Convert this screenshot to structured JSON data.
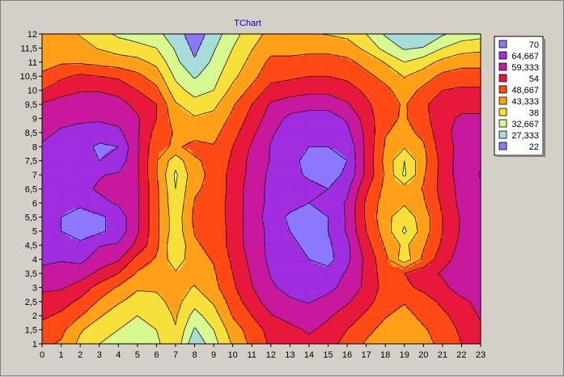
{
  "chart_data": {
    "type": "heatmap",
    "subtype": "contour",
    "title": "TChart",
    "xlabel": "",
    "ylabel": "",
    "xlim": [
      0,
      23
    ],
    "ylim": [
      1,
      12
    ],
    "x_ticks": [
      "0",
      "1",
      "2",
      "3",
      "4",
      "5",
      "6",
      "7",
      "8",
      "9",
      "10",
      "11",
      "12",
      "13",
      "14",
      "15",
      "16",
      "17",
      "18",
      "19",
      "20",
      "21",
      "22",
      "23"
    ],
    "y_ticks": [
      "1",
      "1,5",
      "2",
      "2,5",
      "3",
      "3,5",
      "4",
      "4,5",
      "5",
      "5,5",
      "6",
      "6,5",
      "7",
      "7,5",
      "8",
      "8,5",
      "9",
      "9,5",
      "10",
      "10,5",
      "11",
      "11,5",
      "12"
    ],
    "legend_position": "right",
    "levels": [
      {
        "label": "70",
        "color": "#8c78ff"
      },
      {
        "label": "64,667",
        "color": "#a02de0"
      },
      {
        "label": "59,333",
        "color": "#c8189e"
      },
      {
        "label": "54",
        "color": "#e8183c"
      },
      {
        "label": "48,667",
        "color": "#ff4a16"
      },
      {
        "label": "43,333",
        "color": "#ffa018"
      },
      {
        "label": "38",
        "color": "#f8e03a"
      },
      {
        "label": "32,667",
        "color": "#d8f890"
      },
      {
        "label": "27,333",
        "color": "#a8dcd8"
      },
      {
        "label": "22",
        "color": "#8c78ff"
      }
    ],
    "x": [
      0,
      1,
      2,
      3,
      4,
      5,
      6,
      7,
      8,
      9,
      10,
      11,
      12,
      13,
      14,
      15,
      16,
      17,
      18,
      19,
      20,
      21,
      22,
      23
    ],
    "y": [
      1,
      1.5,
      2,
      2.5,
      3,
      3.5,
      4,
      4.5,
      5,
      5.5,
      6,
      6.5,
      7,
      7.5,
      8,
      8.5,
      9,
      9.5,
      10,
      10.5,
      11,
      11.5,
      12
    ],
    "z": [
      [
        50,
        48,
        42,
        38,
        36,
        35,
        37,
        42,
        28,
        36,
        44,
        50,
        55,
        56,
        58,
        56,
        52,
        48,
        46,
        44,
        47,
        50,
        54,
        57
      ],
      [
        52,
        50,
        44,
        40,
        38,
        36,
        38,
        43,
        32,
        38,
        46,
        51,
        56,
        58,
        60,
        58,
        54,
        50,
        47,
        45,
        48,
        51,
        55,
        58
      ],
      [
        55,
        53,
        49,
        44,
        40,
        38,
        40,
        44,
        36,
        41,
        49,
        54,
        59,
        61,
        62,
        60,
        57,
        53,
        49,
        47,
        50,
        53,
        56,
        60
      ],
      [
        58,
        56,
        53,
        48,
        44,
        41,
        42,
        45,
        40,
        44,
        51,
        57,
        62,
        64,
        65,
        63,
        60,
        56,
        51,
        49,
        52,
        55,
        58,
        61
      ],
      [
        60,
        60,
        57,
        52,
        48,
        44,
        44,
        45,
        43,
        47,
        53,
        59,
        64,
        66,
        67,
        66,
        63,
        58,
        52,
        53,
        55,
        58,
        62,
        63
      ],
      [
        63,
        63,
        62,
        58,
        54,
        48,
        46,
        44,
        45,
        48,
        54,
        60,
        65,
        67,
        68,
        68,
        64,
        58,
        51,
        54,
        57,
        60,
        63,
        64
      ],
      [
        66,
        65,
        66,
        62,
        60,
        52,
        48,
        40,
        47,
        49,
        55,
        61,
        66,
        68,
        70,
        72,
        66,
        58,
        50,
        40,
        50,
        57,
        62,
        63
      ],
      [
        67,
        68,
        69,
        65,
        64,
        58,
        50,
        38,
        48,
        50,
        56,
        62,
        66,
        69,
        71,
        71,
        66,
        56,
        48,
        42,
        48,
        55,
        61,
        62
      ],
      [
        68,
        70,
        72,
        71,
        68,
        60,
        50,
        40,
        49,
        50,
        56,
        62,
        66,
        70,
        72,
        70,
        64,
        54,
        46,
        37,
        46,
        54,
        60,
        62
      ],
      [
        68,
        70,
        72,
        71,
        68,
        60,
        50,
        40,
        50,
        51,
        56,
        62,
        67,
        71,
        73,
        70,
        64,
        53,
        45,
        40,
        46,
        54,
        60,
        62
      ],
      [
        68,
        69,
        69,
        66,
        64,
        60,
        50,
        39,
        49,
        51,
        56,
        62,
        66,
        68,
        70,
        68,
        64,
        53,
        46,
        44,
        48,
        55,
        61,
        63
      ],
      [
        68,
        68,
        66,
        64,
        63,
        60,
        50,
        38,
        48,
        50,
        56,
        62,
        66,
        67,
        68,
        70,
        66,
        55,
        47,
        46,
        49,
        56,
        61,
        64
      ],
      [
        67,
        67,
        66,
        65,
        64,
        60,
        49,
        37,
        47,
        50,
        56,
        61,
        66,
        68,
        71,
        72,
        69,
        58,
        48,
        37,
        48,
        56,
        62,
        65
      ],
      [
        66,
        66,
        68,
        70,
        68,
        60,
        49,
        40,
        48,
        50,
        55,
        61,
        65,
        68,
        72,
        72,
        70,
        58,
        47,
        38,
        47,
        56,
        62,
        64
      ],
      [
        65,
        66,
        68,
        71,
        70,
        60,
        50,
        48,
        50,
        49,
        54,
        60,
        65,
        67,
        70,
        70,
        69,
        58,
        48,
        44,
        48,
        57,
        61,
        63
      ],
      [
        64,
        65,
        66,
        67,
        66,
        60,
        52,
        48,
        47,
        47,
        52,
        58,
        64,
        67,
        66,
        66,
        66,
        58,
        49,
        47,
        50,
        58,
        61,
        62
      ],
      [
        63,
        64,
        64,
        64,
        63,
        60,
        54,
        46,
        44,
        45,
        50,
        56,
        62,
        66,
        67,
        67,
        64,
        57,
        50,
        48,
        52,
        58,
        60,
        60
      ],
      [
        60,
        62,
        62,
        62,
        61,
        58,
        54,
        44,
        40,
        42,
        48,
        54,
        60,
        62,
        63,
        63,
        60,
        55,
        51,
        48,
        53,
        57,
        58,
        58
      ],
      [
        54,
        57,
        59,
        59,
        58,
        54,
        50,
        40,
        36,
        38,
        45,
        50,
        56,
        57,
        58,
        58,
        56,
        53,
        50,
        46,
        50,
        54,
        55,
        55
      ],
      [
        50,
        53,
        55,
        54,
        53,
        50,
        46,
        37,
        32,
        36,
        42,
        47,
        52,
        53,
        54,
        54,
        53,
        50,
        47,
        43,
        46,
        50,
        51,
        51
      ],
      [
        46,
        48,
        48,
        47,
        46,
        45,
        42,
        34,
        28,
        34,
        40,
        45,
        50,
        50,
        51,
        51,
        50,
        47,
        43,
        38,
        41,
        45,
        47,
        47
      ],
      [
        45,
        46,
        45,
        43,
        41,
        40,
        38,
        32,
        26,
        32,
        38,
        43,
        47,
        47,
        47,
        47,
        46,
        42,
        36,
        32,
        33,
        38,
        41,
        42
      ],
      [
        44,
        45,
        43,
        40,
        37,
        35,
        34,
        30,
        24,
        30,
        36,
        41,
        45,
        44,
        44,
        43,
        42,
        38,
        32,
        28,
        28,
        32,
        35,
        36
      ]
    ]
  }
}
